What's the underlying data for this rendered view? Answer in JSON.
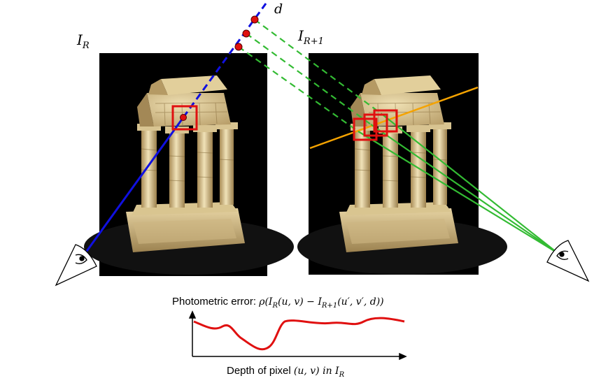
{
  "labels": {
    "reference_image": "I",
    "reference_image_sub": "R",
    "next_image": "I",
    "next_image_sub": "R+1",
    "depth_symbol": "d"
  },
  "plot": {
    "error_label_text": "Photometric error: ",
    "error_label_formula": "ρ(I_R(u, v) − I_R+1(u′, v′, d))",
    "axis_label_text": "Depth of pixel ",
    "axis_label_formula": "(u, v) in I_R"
  },
  "colors": {
    "ray_reference": "#1010e0",
    "ray_projected": "#33bb33",
    "epipolar_line": "#f5a300",
    "patch": "#e01010",
    "depth_sample": "#e01010",
    "error_curve": "#e01010",
    "background": "#ffffff"
  },
  "icons": {
    "left_camera": "eye-icon",
    "right_camera": "eye-icon"
  }
}
